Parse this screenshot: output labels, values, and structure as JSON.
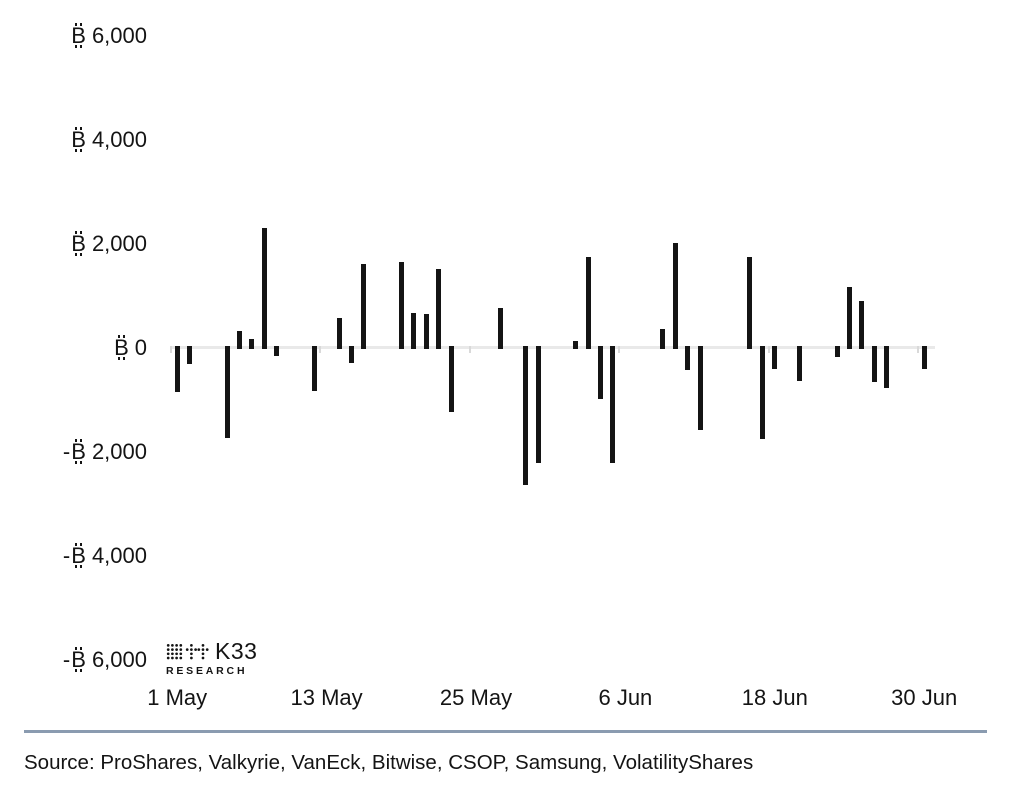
{
  "chart_data": {
    "type": "bar",
    "unit": "BTC",
    "currency_glyph": "B",
    "bar_color": "#141414",
    "axis_color": "#e9e9e9",
    "grid": false,
    "legend": false,
    "ylim": [
      -6000,
      6000
    ],
    "total_days": 61,
    "categories": [
      "1 May",
      "2 May",
      "5 May",
      "6 May",
      "7 May",
      "8 May",
      "9 May",
      "12 May",
      "14 May",
      "15 May",
      "16 May",
      "19 May",
      "20 May",
      "21 May",
      "22 May",
      "23 May",
      "27 May",
      "29 May",
      "30 May",
      "2 Jun",
      "3 Jun",
      "4 Jun",
      "5 Jun",
      "9 Jun",
      "10 Jun",
      "11 Jun",
      "12 Jun",
      "16 Jun",
      "17 Jun",
      "18 Jun",
      "20 Jun",
      "23 Jun",
      "24 Jun",
      "25 Jun",
      "26 Jun",
      "27 Jun",
      "30 Jun"
    ],
    "day_index": [
      0,
      1,
      4,
      5,
      6,
      7,
      8,
      11,
      13,
      14,
      15,
      18,
      19,
      20,
      21,
      22,
      26,
      28,
      29,
      32,
      33,
      34,
      35,
      39,
      40,
      41,
      42,
      46,
      47,
      48,
      50,
      53,
      54,
      55,
      56,
      57,
      60
    ],
    "values": [
      -840,
      -310,
      -1740,
      330,
      175,
      2315,
      -155,
      -830,
      570,
      -295,
      1610,
      1655,
      665,
      655,
      1520,
      -1225,
      775,
      -2635,
      -2205,
      130,
      1755,
      -985,
      -2220,
      360,
      2025,
      -425,
      -1575,
      1755,
      -1755,
      -410,
      -635,
      -180,
      1180,
      905,
      -650,
      -765,
      -410
    ],
    "y_ticks": [
      {
        "sign": "",
        "number": "6,000",
        "value": 6000
      },
      {
        "sign": "",
        "number": "4,000",
        "value": 4000
      },
      {
        "sign": "",
        "number": "2,000",
        "value": 2000
      },
      {
        "sign": "",
        "number": "0",
        "value": 0
      },
      {
        "sign": "-",
        "number": "2,000",
        "value": -2000
      },
      {
        "sign": "-",
        "number": "4,000",
        "value": -4000
      },
      {
        "sign": "-",
        "number": "6,000",
        "value": -6000
      }
    ],
    "x_ticks": [
      {
        "label": "1 May",
        "day": 0
      },
      {
        "label": "13 May",
        "day": 12
      },
      {
        "label": "25 May",
        "day": 24
      },
      {
        "label": "6 Jun",
        "day": 36
      },
      {
        "label": "18 Jun",
        "day": 48
      },
      {
        "label": "30 Jun",
        "day": 60
      }
    ]
  },
  "logo": {
    "name": "K33",
    "subtitle": "RESEARCH"
  },
  "source": {
    "text": "Source: ProShares, Valkyrie, VanEck, Bitwise, CSOP, Samsung, VolatilityShares"
  },
  "colors": {
    "divider": "#8a9bb0",
    "text": "#141414",
    "bar": "#141414",
    "axis": "#e9e9e9",
    "tick": "#d9d9d9"
  }
}
